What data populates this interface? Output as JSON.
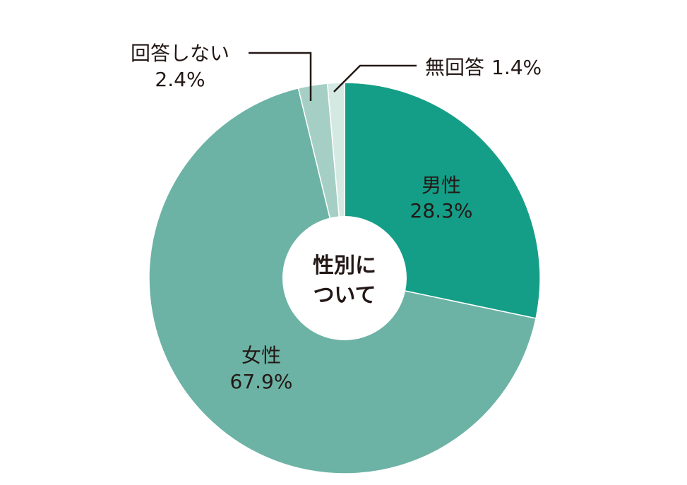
{
  "chart_data": {
    "type": "pie",
    "title": "",
    "center_text": [
      "性別に",
      "ついて"
    ],
    "slices": [
      {
        "label": "男性",
        "value": 28.3,
        "value_text": "28.3%",
        "color": "#159e87"
      },
      {
        "label": "女性",
        "value": 67.9,
        "value_text": "67.9%",
        "color": "#6cb3a5"
      },
      {
        "label": "回答しない",
        "value": 2.4,
        "value_text": "2.4%",
        "color": "#a5cfc4"
      },
      {
        "label": "無回答",
        "value": 1.4,
        "value_text": "1.4%",
        "color": "#d5e9e3"
      }
    ],
    "legend": "none"
  }
}
